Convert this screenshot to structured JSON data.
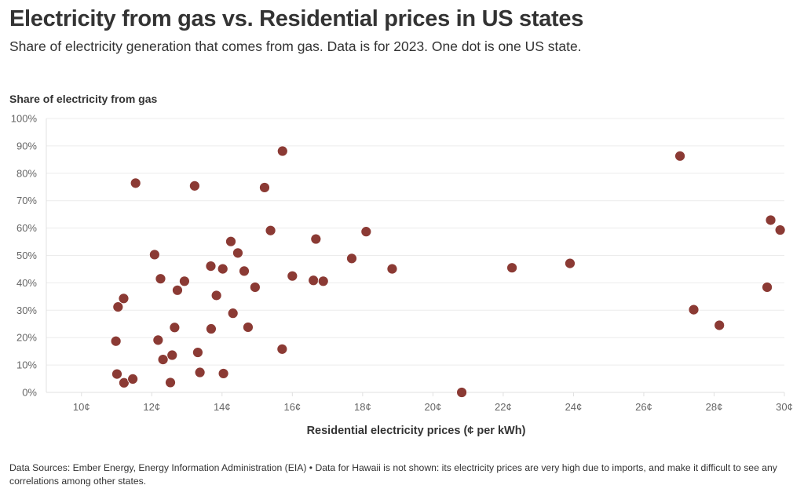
{
  "header": {
    "title": "Electricity from gas vs. Residential prices in US states",
    "subtitle": "Share of electricity generation that comes from gas. Data is for 2023. One dot is one US state."
  },
  "footer": {
    "note": "Data Sources: Ember Energy, Energy Information Administration (EIA) • Data for Hawaii is not shown: its electricity prices are very high due to imports, and make it difficult to see any correlations among other states."
  },
  "colors": {
    "dot": "#8B3A34",
    "grid": "#ececec",
    "axis": "#e0e0e0",
    "text": "#333333",
    "tick_text": "#666666"
  },
  "chart_data": {
    "type": "scatter",
    "title": "Electricity from gas vs. Residential prices in US states",
    "subtitle": "Share of electricity generation that comes from gas. Data is for 2023. One dot is one US state.",
    "xlabel": "Residential electricity prices (¢ per kWh)",
    "ylabel": "Share of electricity from gas",
    "xlim": [
      9,
      30
    ],
    "ylim": [
      0,
      100
    ],
    "x_ticks": [
      10,
      12,
      14,
      16,
      18,
      20,
      22,
      24,
      26,
      28,
      30
    ],
    "x_tick_labels": [
      "10¢",
      "12¢",
      "14¢",
      "16¢",
      "18¢",
      "20¢",
      "22¢",
      "24¢",
      "26¢",
      "28¢",
      "30¢"
    ],
    "y_ticks": [
      0,
      10,
      20,
      30,
      40,
      50,
      60,
      70,
      80,
      90,
      100
    ],
    "y_tick_labels": [
      "0%",
      "10%",
      "20%",
      "30%",
      "40%",
      "50%",
      "60%",
      "70%",
      "80%",
      "90%",
      "100%"
    ],
    "grid": "horizontal",
    "legend": "none",
    "points": [
      {
        "x": 14.25,
        "y": 55.1
      },
      {
        "x": 14.45,
        "y": 50.9
      },
      {
        "x": 12.08,
        "y": 50.3
      },
      {
        "x": 13.68,
        "y": 46.1
      },
      {
        "x": 14.02,
        "y": 45.1
      },
      {
        "x": 14.63,
        "y": 44.3
      },
      {
        "x": 12.25,
        "y": 41.5
      },
      {
        "x": 12.93,
        "y": 40.6
      },
      {
        "x": 12.73,
        "y": 37.3
      },
      {
        "x": 14.94,
        "y": 38.4
      },
      {
        "x": 13.84,
        "y": 35.4
      },
      {
        "x": 11.2,
        "y": 34.3
      },
      {
        "x": 11.04,
        "y": 31.2
      },
      {
        "x": 14.31,
        "y": 28.9
      },
      {
        "x": 12.65,
        "y": 23.7
      },
      {
        "x": 13.69,
        "y": 23.2
      },
      {
        "x": 14.74,
        "y": 23.8
      },
      {
        "x": 10.98,
        "y": 18.7
      },
      {
        "x": 12.18,
        "y": 19.1
      },
      {
        "x": 13.31,
        "y": 14.6
      },
      {
        "x": 12.58,
        "y": 13.6
      },
      {
        "x": 12.32,
        "y": 12.0
      },
      {
        "x": 11.01,
        "y": 6.7
      },
      {
        "x": 11.21,
        "y": 3.5
      },
      {
        "x": 11.46,
        "y": 4.9
      },
      {
        "x": 12.53,
        "y": 3.6
      },
      {
        "x": 13.37,
        "y": 7.3
      },
      {
        "x": 14.04,
        "y": 6.9
      },
      {
        "x": 15.72,
        "y": 88.1
      },
      {
        "x": 11.54,
        "y": 76.4
      },
      {
        "x": 13.22,
        "y": 75.4
      },
      {
        "x": 15.21,
        "y": 74.8
      },
      {
        "x": 15.38,
        "y": 59.1
      },
      {
        "x": 16.67,
        "y": 56.0
      },
      {
        "x": 18.1,
        "y": 58.7
      },
      {
        "x": 17.69,
        "y": 48.9
      },
      {
        "x": 18.84,
        "y": 45.1
      },
      {
        "x": 16.0,
        "y": 42.5
      },
      {
        "x": 16.6,
        "y": 40.9
      },
      {
        "x": 16.88,
        "y": 40.6
      },
      {
        "x": 15.71,
        "y": 15.8
      },
      {
        "x": 22.25,
        "y": 45.5
      },
      {
        "x": 23.9,
        "y": 47.1
      },
      {
        "x": 20.82,
        "y": 0.0
      },
      {
        "x": 27.03,
        "y": 86.3
      },
      {
        "x": 29.61,
        "y": 62.9
      },
      {
        "x": 29.88,
        "y": 59.3
      },
      {
        "x": 29.51,
        "y": 38.4
      },
      {
        "x": 27.42,
        "y": 30.2
      },
      {
        "x": 28.15,
        "y": 24.5
      }
    ]
  }
}
